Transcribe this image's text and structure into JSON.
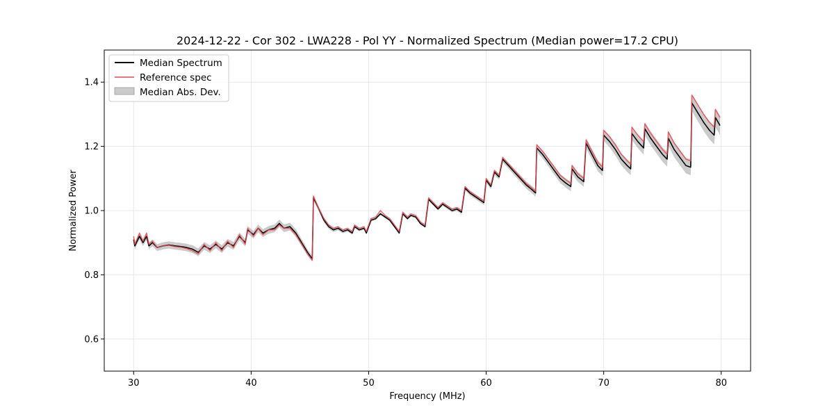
{
  "chart_data": {
    "type": "line",
    "title": "2024-12-22 - Cor 302 - LWA228 - Pol YY - Normalized Spectrum (Median power=17.2 CPU)",
    "xlabel": "Frequency (MHz)",
    "ylabel": "Normalized Power",
    "xlim": [
      27.5,
      82.5
    ],
    "ylim": [
      0.5,
      1.5
    ],
    "xticks": [
      30,
      40,
      50,
      60,
      70,
      80
    ],
    "yticks": [
      0.6,
      0.8,
      1.0,
      1.2,
      1.4
    ],
    "xtick_labels": [
      "30",
      "40",
      "50",
      "60",
      "70",
      "80"
    ],
    "ytick_labels": [
      "0.6",
      "0.8",
      "1.0",
      "1.2",
      "1.4"
    ],
    "grid": true,
    "legend_position": "top-left",
    "legend": {
      "median": "Median Spectrum",
      "reference": "Reference spec",
      "mad": "Median Abs. Dev."
    },
    "colors": {
      "median": "#000000",
      "reference": "#e8474f",
      "band": "#a9a9a9"
    },
    "series": [
      {
        "name": "Median Spectrum",
        "x": [
          30.0,
          30.1,
          30.5,
          30.8,
          31.1,
          31.3,
          31.6,
          32.0,
          32.5,
          33.0,
          33.5,
          34.0,
          34.5,
          35.0,
          35.5,
          36.0,
          36.5,
          37.0,
          37.5,
          38.0,
          38.5,
          39.0,
          39.5,
          39.7,
          40.2,
          40.6,
          41.0,
          41.5,
          42.0,
          42.4,
          42.8,
          43.3,
          43.8,
          44.3,
          44.8,
          45.2,
          45.3,
          45.7,
          46.2,
          46.6,
          47.0,
          47.4,
          47.8,
          48.2,
          48.6,
          48.8,
          49.2,
          49.6,
          49.8,
          50.2,
          50.6,
          51.0,
          51.4,
          51.8,
          52.2,
          52.6,
          52.9,
          53.3,
          53.6,
          54.0,
          54.4,
          54.8,
          55.1,
          55.5,
          55.9,
          56.3,
          56.7,
          57.1,
          57.5,
          57.9,
          58.2,
          58.6,
          59.0,
          59.4,
          59.8,
          60.0,
          60.4,
          60.7,
          61.1,
          61.4,
          61.9,
          62.4,
          62.9,
          63.4,
          63.9,
          64.2,
          64.3,
          64.8,
          65.3,
          65.8,
          66.3,
          66.8,
          67.2,
          67.3,
          67.8,
          68.3,
          68.5,
          69.0,
          69.5,
          69.9,
          70.0,
          70.5,
          71.0,
          71.5,
          72.0,
          72.3,
          72.4,
          72.9,
          73.4,
          73.5,
          74.0,
          74.5,
          75.0,
          75.4,
          75.5,
          76.0,
          76.5,
          77.0,
          77.4,
          77.5,
          78.0,
          78.5,
          79.0,
          79.4,
          79.5,
          79.9
        ],
        "values": [
          0.91,
          0.89,
          0.92,
          0.9,
          0.92,
          0.89,
          0.9,
          0.885,
          0.89,
          0.893,
          0.89,
          0.888,
          0.885,
          0.88,
          0.87,
          0.89,
          0.88,
          0.895,
          0.88,
          0.9,
          0.89,
          0.92,
          0.9,
          0.94,
          0.925,
          0.945,
          0.93,
          0.94,
          0.945,
          0.96,
          0.945,
          0.95,
          0.93,
          0.9,
          0.87,
          0.85,
          1.04,
          1.01,
          0.97,
          0.95,
          0.94,
          0.945,
          0.935,
          0.94,
          0.93,
          0.95,
          0.94,
          0.945,
          0.93,
          0.97,
          0.975,
          0.99,
          0.98,
          0.97,
          0.95,
          0.93,
          0.99,
          0.975,
          0.985,
          0.98,
          0.96,
          0.95,
          1.035,
          1.02,
          1.005,
          1.02,
          1.01,
          1.0,
          1.005,
          0.995,
          1.07,
          1.055,
          1.045,
          1.035,
          1.025,
          1.095,
          1.075,
          1.12,
          1.105,
          1.16,
          1.14,
          1.12,
          1.1,
          1.08,
          1.065,
          1.055,
          1.195,
          1.175,
          1.15,
          1.125,
          1.1,
          1.085,
          1.075,
          1.13,
          1.105,
          1.09,
          1.21,
          1.175,
          1.14,
          1.125,
          1.235,
          1.215,
          1.19,
          1.16,
          1.14,
          1.13,
          1.24,
          1.215,
          1.195,
          1.255,
          1.225,
          1.2,
          1.175,
          1.16,
          1.225,
          1.19,
          1.165,
          1.14,
          1.135,
          1.335,
          1.305,
          1.275,
          1.25,
          1.235,
          1.29,
          1.265
        ]
      },
      {
        "name": "Reference spec",
        "x": [
          30.0,
          30.1,
          30.5,
          30.8,
          31.1,
          31.3,
          31.6,
          32.0,
          32.5,
          33.0,
          33.5,
          34.0,
          34.5,
          35.0,
          35.5,
          36.0,
          36.5,
          37.0,
          37.5,
          38.0,
          38.5,
          39.0,
          39.5,
          39.7,
          40.2,
          40.6,
          41.0,
          41.5,
          42.0,
          42.4,
          42.8,
          43.3,
          43.8,
          44.3,
          44.8,
          45.2,
          45.3,
          45.7,
          46.2,
          46.6,
          47.0,
          47.4,
          47.8,
          48.2,
          48.6,
          48.8,
          49.2,
          49.6,
          49.8,
          50.2,
          50.6,
          51.0,
          51.4,
          51.8,
          52.2,
          52.6,
          52.9,
          53.3,
          53.6,
          54.0,
          54.4,
          54.8,
          55.1,
          55.5,
          55.9,
          56.3,
          56.7,
          57.1,
          57.5,
          57.9,
          58.2,
          58.6,
          59.0,
          59.4,
          59.8,
          60.0,
          60.4,
          60.7,
          61.1,
          61.4,
          61.9,
          62.4,
          62.9,
          63.4,
          63.9,
          64.2,
          64.3,
          64.8,
          65.3,
          65.8,
          66.3,
          66.8,
          67.2,
          67.3,
          67.8,
          68.3,
          68.5,
          69.0,
          69.5,
          69.9,
          70.0,
          70.5,
          71.0,
          71.5,
          72.0,
          72.3,
          72.4,
          72.9,
          73.4,
          73.5,
          74.0,
          74.5,
          75.0,
          75.4,
          75.5,
          76.0,
          76.5,
          77.0,
          77.4,
          77.5,
          78.0,
          78.5,
          79.0,
          79.4,
          79.5,
          79.9
        ],
        "values": [
          0.92,
          0.895,
          0.93,
          0.905,
          0.93,
          0.895,
          0.905,
          0.885,
          0.89,
          0.892,
          0.888,
          0.886,
          0.882,
          0.875,
          0.865,
          0.895,
          0.875,
          0.9,
          0.875,
          0.905,
          0.885,
          0.925,
          0.895,
          0.945,
          0.92,
          0.945,
          0.925,
          0.94,
          0.94,
          0.955,
          0.945,
          0.945,
          0.925,
          0.895,
          0.865,
          0.845,
          1.045,
          1.01,
          0.975,
          0.955,
          0.945,
          0.95,
          0.94,
          0.945,
          0.935,
          0.955,
          0.945,
          0.95,
          0.935,
          0.975,
          0.98,
          1.0,
          0.985,
          0.975,
          0.955,
          0.935,
          0.995,
          0.98,
          0.99,
          0.985,
          0.965,
          0.955,
          1.04,
          1.025,
          1.01,
          1.025,
          1.015,
          1.005,
          1.01,
          1.0,
          1.075,
          1.06,
          1.05,
          1.04,
          1.03,
          1.1,
          1.08,
          1.125,
          1.11,
          1.165,
          1.145,
          1.125,
          1.105,
          1.085,
          1.07,
          1.06,
          1.205,
          1.185,
          1.16,
          1.135,
          1.11,
          1.095,
          1.085,
          1.14,
          1.115,
          1.1,
          1.22,
          1.185,
          1.15,
          1.135,
          1.25,
          1.23,
          1.205,
          1.175,
          1.155,
          1.145,
          1.26,
          1.235,
          1.215,
          1.27,
          1.24,
          1.215,
          1.19,
          1.175,
          1.245,
          1.21,
          1.185,
          1.16,
          1.155,
          1.36,
          1.33,
          1.3,
          1.275,
          1.26,
          1.315,
          1.29
        ]
      }
    ],
    "mad_band": {
      "name": "Median Abs. Dev.",
      "x": [
        30.0,
        35.0,
        40.0,
        44.0,
        45.3,
        50.0,
        55.0,
        60.0,
        64.3,
        68.5,
        72.4,
        77.5,
        79.9
      ],
      "half_width": [
        0.01,
        0.012,
        0.012,
        0.012,
        0.008,
        0.004,
        0.004,
        0.008,
        0.012,
        0.016,
        0.02,
        0.025,
        0.03
      ]
    }
  }
}
